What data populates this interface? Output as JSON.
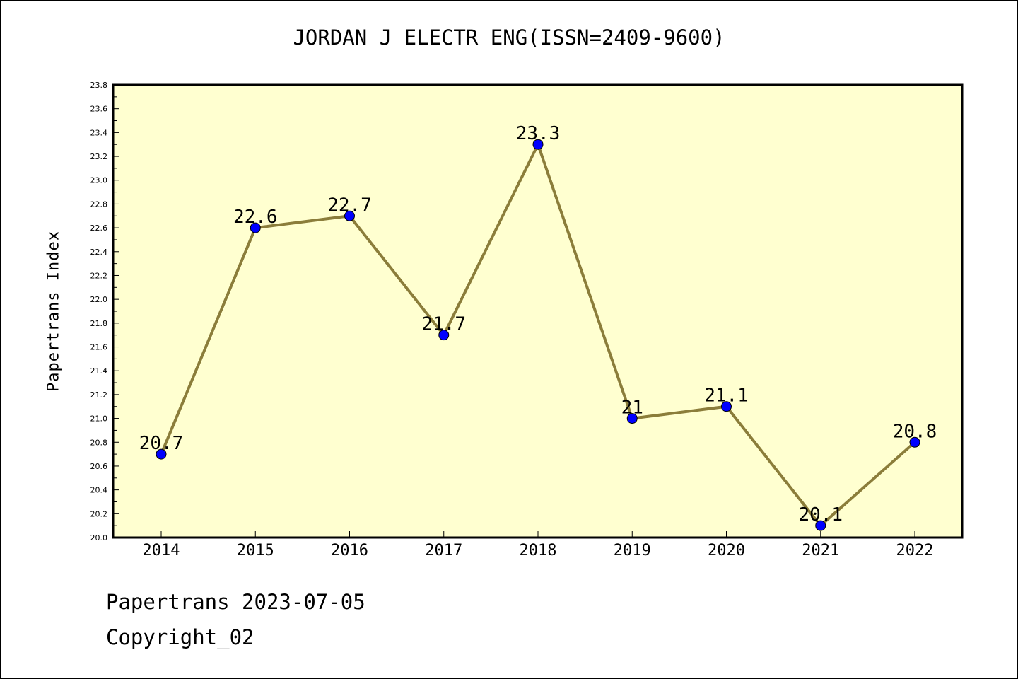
{
  "chart_data": {
    "type": "line",
    "title": "JORDAN J ELECTR ENG(ISSN=2409-9600)",
    "ylabel": "Papertrans Index",
    "xlabel": "",
    "categories": [
      "2014",
      "2015",
      "2016",
      "2017",
      "2018",
      "2019",
      "2020",
      "2021",
      "2022"
    ],
    "values": [
      20.7,
      22.6,
      22.7,
      21.7,
      23.3,
      21.0,
      21.1,
      20.1,
      20.8
    ],
    "data_labels": [
      "20.7",
      "22.6",
      "22.7",
      "21.7",
      "23.3",
      "21",
      "21.1",
      "20.1",
      "20.8"
    ],
    "ylim": [
      20.0,
      23.8
    ],
    "yticks": [
      "20.0",
      "20.2",
      "20.4",
      "20.6",
      "20.8",
      "21.0",
      "21.2",
      "21.4",
      "21.6",
      "21.8",
      "22.0",
      "22.2",
      "22.4",
      "22.6",
      "22.8",
      "23.0",
      "23.2",
      "23.4",
      "23.6",
      "23.8"
    ],
    "grid": false,
    "colors": {
      "plot_background": "#ffffd0",
      "line": "#8b7d3a",
      "marker": "#0000ff"
    }
  },
  "footer": {
    "line1": "Papertrans 2023-07-05",
    "line2": "Copyright_02"
  }
}
